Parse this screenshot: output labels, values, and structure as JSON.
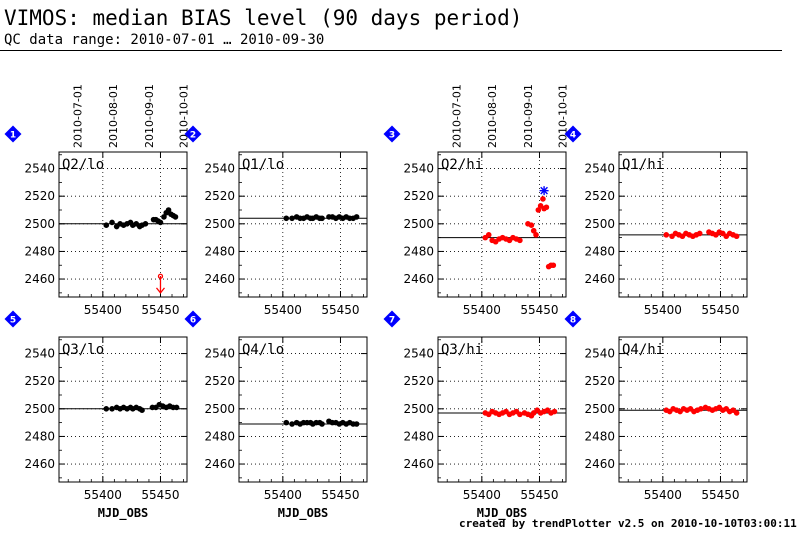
{
  "page": {
    "title": "VIMOS: median BIAS level (90 days period)",
    "subtitle": "QC data range: 2010-07-01 … 2010-09-30",
    "footer": "created by trendPlotter v2.5 on 2010-10-10T03:00:11"
  },
  "colors": {
    "lo_points": "#000000",
    "hi_points": "#ff0000",
    "marker_fill": "#0000ff",
    "outlier_star": "#0000ff",
    "outlier_arrow": "#ff0000"
  },
  "chart_data": [
    {
      "type": "scatter",
      "marker": "1",
      "label": "Q2/lo",
      "series_color": "lo",
      "top_axis_dates": [
        "2010-07-01",
        "2010-08-01",
        "2010-09-01",
        "2010-10-01"
      ],
      "xlabel": "",
      "xlim": [
        55362,
        55473
      ],
      "ylim": [
        2447,
        2552
      ],
      "xticks": [
        55400,
        55450
      ],
      "yticks": [
        2460,
        2480,
        2500,
        2520,
        2540
      ],
      "reference_line": 2500,
      "points": [
        [
          55403,
          2499
        ],
        [
          55408,
          2501
        ],
        [
          55412,
          2498
        ],
        [
          55415,
          2500
        ],
        [
          55418,
          2499
        ],
        [
          55421,
          2500
        ],
        [
          55424,
          2501
        ],
        [
          55426,
          2499
        ],
        [
          55429,
          2500
        ],
        [
          55432,
          2498
        ],
        [
          55434,
          2499
        ],
        [
          55437,
          2500
        ],
        [
          55444,
          2503
        ],
        [
          55446,
          2503
        ],
        [
          55448,
          2502
        ],
        [
          55450,
          2501
        ],
        [
          55453,
          2505
        ],
        [
          55455,
          2508
        ],
        [
          55457,
          2510
        ],
        [
          55459,
          2507
        ],
        [
          55461,
          2506
        ],
        [
          55463,
          2505
        ]
      ],
      "outlier_arrow": {
        "x": 55450,
        "y_from": 2462,
        "y_to": 2450
      }
    },
    {
      "type": "scatter",
      "marker": "2",
      "label": "Q1/lo",
      "series_color": "lo",
      "xlabel": "",
      "xlim": [
        55362,
        55473
      ],
      "ylim": [
        2447,
        2552
      ],
      "xticks": [
        55400,
        55450
      ],
      "yticks": [
        2460,
        2480,
        2500,
        2520,
        2540
      ],
      "reference_line": 2504,
      "points": [
        [
          55403,
          2504
        ],
        [
          55408,
          2504
        ],
        [
          55412,
          2505
        ],
        [
          55415,
          2504
        ],
        [
          55418,
          2504
        ],
        [
          55421,
          2505
        ],
        [
          55424,
          2504
        ],
        [
          55426,
          2504
        ],
        [
          55429,
          2505
        ],
        [
          55432,
          2504
        ],
        [
          55434,
          2504
        ],
        [
          55440,
          2505
        ],
        [
          55443,
          2505
        ],
        [
          55446,
          2504
        ],
        [
          55449,
          2505
        ],
        [
          55452,
          2504
        ],
        [
          55455,
          2505
        ],
        [
          55458,
          2504
        ],
        [
          55461,
          2504
        ],
        [
          55464,
          2505
        ]
      ]
    },
    {
      "type": "scatter",
      "marker": "3",
      "label": "Q2/hi",
      "series_color": "hi",
      "top_axis_dates": [
        "2010-07-01",
        "2010-08-01",
        "2010-09-01",
        "2010-10-01"
      ],
      "xlabel": "",
      "xlim": [
        55362,
        55473
      ],
      "ylim": [
        2447,
        2552
      ],
      "xticks": [
        55400,
        55450
      ],
      "yticks": [
        2460,
        2480,
        2500,
        2520,
        2540
      ],
      "reference_line": 2490,
      "points": [
        [
          55403,
          2490
        ],
        [
          55406,
          2492
        ],
        [
          55409,
          2488
        ],
        [
          55412,
          2487
        ],
        [
          55415,
          2489
        ],
        [
          55418,
          2490
        ],
        [
          55421,
          2489
        ],
        [
          55424,
          2488
        ],
        [
          55427,
          2490
        ],
        [
          55430,
          2489
        ],
        [
          55433,
          2488
        ],
        [
          55440,
          2500
        ],
        [
          55443,
          2499
        ],
        [
          55445,
          2495
        ],
        [
          55447,
          2492
        ],
        [
          55449,
          2510
        ],
        [
          55451,
          2513
        ],
        [
          55453,
          2518
        ],
        [
          55454,
          2511
        ],
        [
          55456,
          2512
        ],
        [
          55458,
          2469
        ],
        [
          55460,
          2470
        ],
        [
          55462,
          2470
        ]
      ],
      "outlier_star": {
        "x": 55454,
        "y": 2524
      }
    },
    {
      "type": "scatter",
      "marker": "4",
      "label": "Q1/hi",
      "series_color": "hi",
      "xlabel": "",
      "xlim": [
        55362,
        55473
      ],
      "ylim": [
        2447,
        2552
      ],
      "xticks": [
        55400,
        55450
      ],
      "yticks": [
        2460,
        2480,
        2500,
        2520,
        2540
      ],
      "reference_line": 2492,
      "points": [
        [
          55403,
          2492
        ],
        [
          55408,
          2491
        ],
        [
          55411,
          2493
        ],
        [
          55414,
          2492
        ],
        [
          55417,
          2491
        ],
        [
          55420,
          2493
        ],
        [
          55423,
          2492
        ],
        [
          55426,
          2491
        ],
        [
          55429,
          2492
        ],
        [
          55432,
          2493
        ],
        [
          55440,
          2494
        ],
        [
          55443,
          2493
        ],
        [
          55446,
          2492
        ],
        [
          55449,
          2494
        ],
        [
          55452,
          2493
        ],
        [
          55455,
          2491
        ],
        [
          55458,
          2493
        ],
        [
          55461,
          2492
        ],
        [
          55464,
          2491
        ]
      ]
    },
    {
      "type": "scatter",
      "marker": "5",
      "label": "Q3/lo",
      "series_color": "lo",
      "xlabel": "MJD_OBS",
      "xlim": [
        55362,
        55473
      ],
      "ylim": [
        2447,
        2552
      ],
      "xticks": [
        55400,
        55450
      ],
      "yticks": [
        2460,
        2480,
        2500,
        2520,
        2540
      ],
      "reference_line": 2500,
      "points": [
        [
          55403,
          2500
        ],
        [
          55408,
          2500
        ],
        [
          55412,
          2501
        ],
        [
          55415,
          2500
        ],
        [
          55418,
          2501
        ],
        [
          55421,
          2500
        ],
        [
          55424,
          2501
        ],
        [
          55426,
          2500
        ],
        [
          55429,
          2501
        ],
        [
          55432,
          2500
        ],
        [
          55434,
          2499
        ],
        [
          55443,
          2501
        ],
        [
          55446,
          2501
        ],
        [
          55449,
          2503
        ],
        [
          55452,
          2502
        ],
        [
          55455,
          2501
        ],
        [
          55458,
          2502
        ],
        [
          55461,
          2501
        ],
        [
          55464,
          2501
        ]
      ]
    },
    {
      "type": "scatter",
      "marker": "6",
      "label": "Q4/lo",
      "series_color": "lo",
      "xlabel": "MJD_OBS",
      "xlim": [
        55362,
        55473
      ],
      "ylim": [
        2447,
        2552
      ],
      "xticks": [
        55400,
        55450
      ],
      "yticks": [
        2460,
        2480,
        2500,
        2520,
        2540
      ],
      "reference_line": 2489,
      "points": [
        [
          55403,
          2490
        ],
        [
          55408,
          2489
        ],
        [
          55412,
          2490
        ],
        [
          55415,
          2489
        ],
        [
          55418,
          2490
        ],
        [
          55421,
          2490
        ],
        [
          55424,
          2490
        ],
        [
          55426,
          2489
        ],
        [
          55429,
          2490
        ],
        [
          55432,
          2490
        ],
        [
          55434,
          2489
        ],
        [
          55440,
          2491
        ],
        [
          55443,
          2490
        ],
        [
          55446,
          2490
        ],
        [
          55449,
          2489
        ],
        [
          55452,
          2490
        ],
        [
          55455,
          2489
        ],
        [
          55458,
          2490
        ],
        [
          55461,
          2489
        ],
        [
          55464,
          2489
        ]
      ]
    },
    {
      "type": "scatter",
      "marker": "7",
      "label": "Q3/hi",
      "series_color": "hi",
      "xlabel": "MJD_OBS",
      "xlim": [
        55362,
        55473
      ],
      "ylim": [
        2447,
        2552
      ],
      "xticks": [
        55400,
        55450
      ],
      "yticks": [
        2460,
        2480,
        2500,
        2520,
        2540
      ],
      "reference_line": 2497,
      "points": [
        [
          55403,
          2497
        ],
        [
          55406,
          2496
        ],
        [
          55409,
          2498
        ],
        [
          55412,
          2497
        ],
        [
          55415,
          2496
        ],
        [
          55418,
          2497
        ],
        [
          55421,
          2498
        ],
        [
          55424,
          2496
        ],
        [
          55427,
          2497
        ],
        [
          55430,
          2498
        ],
        [
          55433,
          2496
        ],
        [
          55437,
          2497
        ],
        [
          55440,
          2496
        ],
        [
          55443,
          2495
        ],
        [
          55445,
          2497
        ],
        [
          55448,
          2499
        ],
        [
          55451,
          2497
        ],
        [
          55454,
          2498
        ],
        [
          55457,
          2499
        ],
        [
          55460,
          2497
        ],
        [
          55463,
          2498
        ]
      ]
    },
    {
      "type": "scatter",
      "marker": "8",
      "label": "Q4/hi",
      "series_color": "hi",
      "xlabel": "",
      "xlim": [
        55362,
        55473
      ],
      "ylim": [
        2447,
        2552
      ],
      "xticks": [
        55400,
        55450
      ],
      "yticks": [
        2460,
        2480,
        2500,
        2520,
        2540
      ],
      "reference_line": 2499,
      "points": [
        [
          55403,
          2499
        ],
        [
          55406,
          2498
        ],
        [
          55409,
          2500
        ],
        [
          55412,
          2499
        ],
        [
          55415,
          2498
        ],
        [
          55418,
          2500
        ],
        [
          55421,
          2499
        ],
        [
          55424,
          2500
        ],
        [
          55427,
          2498
        ],
        [
          55430,
          2499
        ],
        [
          55433,
          2500
        ],
        [
          55437,
          2501
        ],
        [
          55440,
          2500
        ],
        [
          55443,
          2499
        ],
        [
          55446,
          2500
        ],
        [
          55449,
          2501
        ],
        [
          55452,
          2499
        ],
        [
          55455,
          2500
        ],
        [
          55458,
          2498
        ],
        [
          55461,
          2499
        ],
        [
          55464,
          2497
        ]
      ]
    }
  ]
}
